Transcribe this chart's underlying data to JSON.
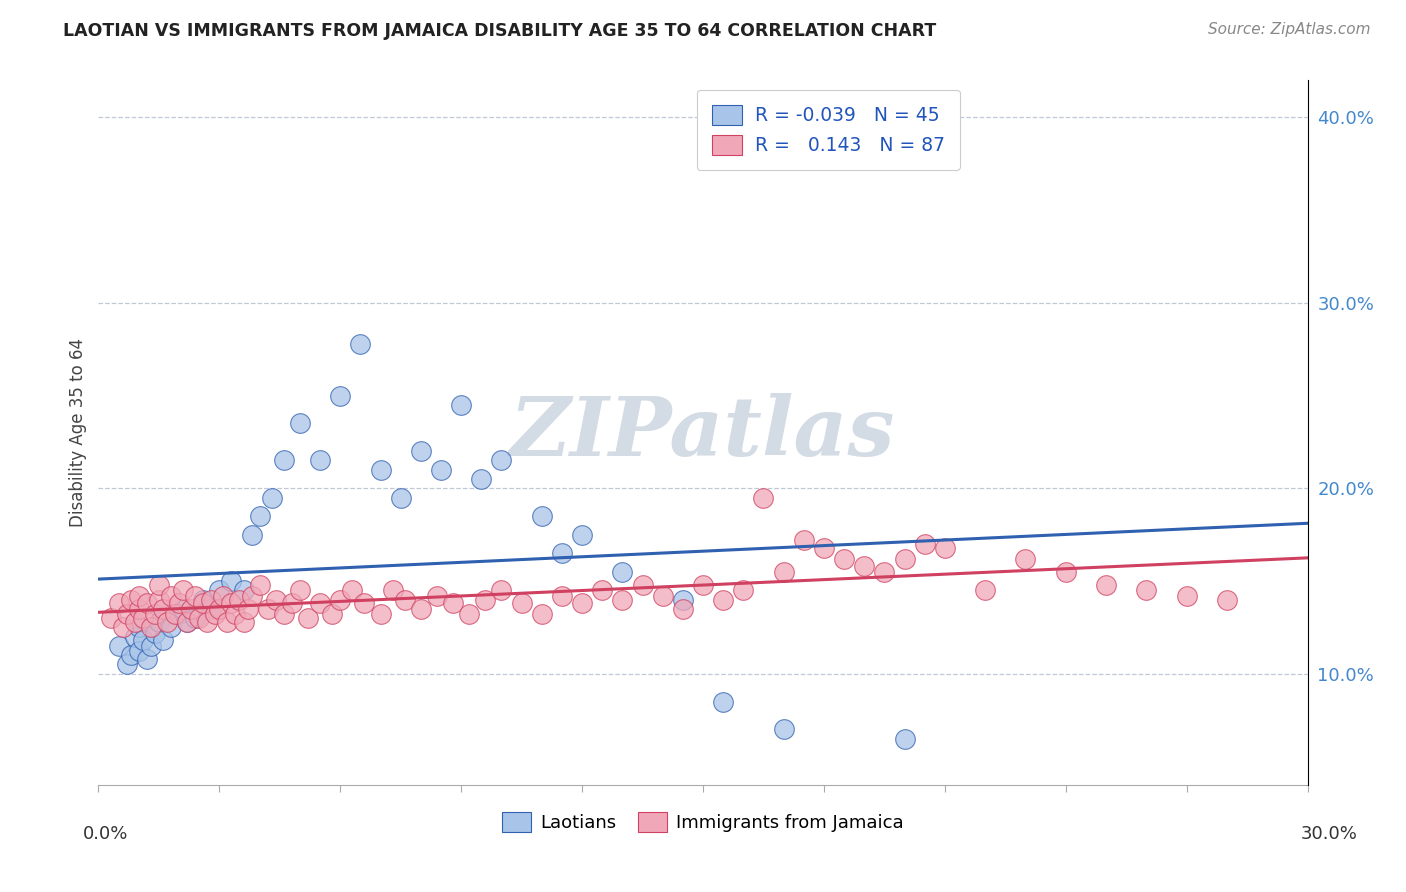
{
  "title": "LAOTIAN VS IMMIGRANTS FROM JAMAICA DISABILITY AGE 35 TO 64 CORRELATION CHART",
  "source": "Source: ZipAtlas.com",
  "ylabel": "Disability Age 35 to 64",
  "right_yticklabels": [
    "10.0%",
    "20.0%",
    "30.0%",
    "40.0%"
  ],
  "right_yticks": [
    0.1,
    0.2,
    0.3,
    0.4
  ],
  "xlim": [
    0.0,
    0.3
  ],
  "ylim": [
    0.04,
    0.42
  ],
  "color_blue": "#a8c4e8",
  "color_pink": "#f0a8b8",
  "line_blue": "#3060b0",
  "line_pink": "#d04060",
  "watermark_color": "#ccd5e0",
  "lao_x": [
    0.005,
    0.007,
    0.008,
    0.009,
    0.01,
    0.01,
    0.011,
    0.012,
    0.013,
    0.014,
    0.015,
    0.016,
    0.018,
    0.02,
    0.021,
    0.022,
    0.024,
    0.026,
    0.028,
    0.03,
    0.033,
    0.036,
    0.038,
    0.04,
    0.043,
    0.046,
    0.05,
    0.055,
    0.06,
    0.065,
    0.07,
    0.075,
    0.08,
    0.085,
    0.09,
    0.095,
    0.1,
    0.11,
    0.115,
    0.12,
    0.13,
    0.145,
    0.155,
    0.17,
    0.2
  ],
  "lao_y": [
    0.115,
    0.105,
    0.11,
    0.12,
    0.125,
    0.112,
    0.118,
    0.108,
    0.115,
    0.122,
    0.128,
    0.118,
    0.125,
    0.132,
    0.135,
    0.128,
    0.13,
    0.14,
    0.135,
    0.145,
    0.15,
    0.145,
    0.175,
    0.185,
    0.195,
    0.215,
    0.235,
    0.215,
    0.25,
    0.278,
    0.21,
    0.195,
    0.22,
    0.21,
    0.245,
    0.205,
    0.215,
    0.185,
    0.165,
    0.175,
    0.155,
    0.14,
    0.085,
    0.07,
    0.065
  ],
  "jam_x": [
    0.003,
    0.005,
    0.006,
    0.007,
    0.008,
    0.009,
    0.01,
    0.01,
    0.011,
    0.012,
    0.013,
    0.014,
    0.015,
    0.015,
    0.016,
    0.017,
    0.018,
    0.019,
    0.02,
    0.021,
    0.022,
    0.023,
    0.024,
    0.025,
    0.026,
    0.027,
    0.028,
    0.029,
    0.03,
    0.031,
    0.032,
    0.033,
    0.034,
    0.035,
    0.036,
    0.037,
    0.038,
    0.04,
    0.042,
    0.044,
    0.046,
    0.048,
    0.05,
    0.052,
    0.055,
    0.058,
    0.06,
    0.063,
    0.066,
    0.07,
    0.073,
    0.076,
    0.08,
    0.084,
    0.088,
    0.092,
    0.096,
    0.1,
    0.105,
    0.11,
    0.115,
    0.12,
    0.125,
    0.13,
    0.135,
    0.14,
    0.145,
    0.15,
    0.155,
    0.16,
    0.165,
    0.17,
    0.175,
    0.18,
    0.185,
    0.19,
    0.195,
    0.2,
    0.205,
    0.21,
    0.22,
    0.23,
    0.24,
    0.25,
    0.26,
    0.27,
    0.28
  ],
  "jam_y": [
    0.13,
    0.138,
    0.125,
    0.132,
    0.14,
    0.128,
    0.135,
    0.142,
    0.13,
    0.138,
    0.125,
    0.132,
    0.14,
    0.148,
    0.135,
    0.128,
    0.142,
    0.132,
    0.138,
    0.145,
    0.128,
    0.135,
    0.142,
    0.13,
    0.138,
    0.128,
    0.14,
    0.132,
    0.135,
    0.142,
    0.128,
    0.138,
    0.132,
    0.14,
    0.128,
    0.135,
    0.142,
    0.148,
    0.135,
    0.14,
    0.132,
    0.138,
    0.145,
    0.13,
    0.138,
    0.132,
    0.14,
    0.145,
    0.138,
    0.132,
    0.145,
    0.14,
    0.135,
    0.142,
    0.138,
    0.132,
    0.14,
    0.145,
    0.138,
    0.132,
    0.142,
    0.138,
    0.145,
    0.14,
    0.148,
    0.142,
    0.135,
    0.148,
    0.14,
    0.145,
    0.195,
    0.155,
    0.172,
    0.168,
    0.162,
    0.158,
    0.155,
    0.162,
    0.17,
    0.168,
    0.145,
    0.162,
    0.155,
    0.148,
    0.145,
    0.142,
    0.14
  ]
}
